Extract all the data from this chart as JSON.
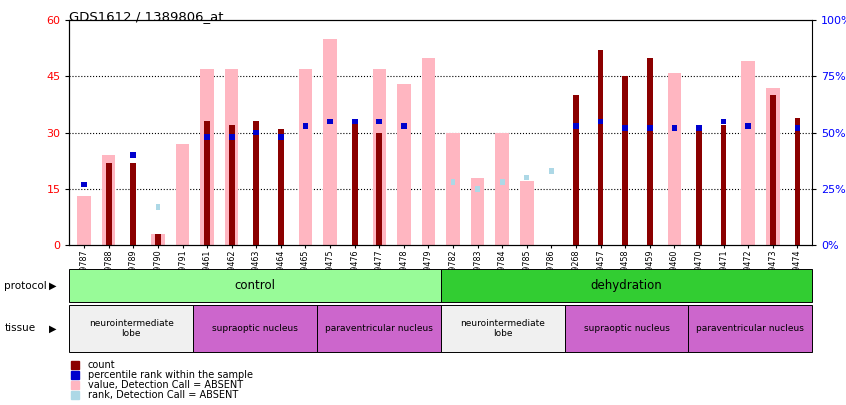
{
  "title": "GDS1612 / 1389806_at",
  "samples": [
    "GSM69787",
    "GSM69788",
    "GSM69789",
    "GSM69790",
    "GSM69791",
    "GSM69461",
    "GSM69462",
    "GSM69463",
    "GSM69464",
    "GSM69465",
    "GSM69475",
    "GSM69476",
    "GSM69477",
    "GSM69478",
    "GSM69479",
    "GSM69782",
    "GSM69783",
    "GSM69784",
    "GSM69785",
    "GSM69786",
    "GSM69268",
    "GSM69457",
    "GSM69458",
    "GSM69459",
    "GSM69460",
    "GSM69470",
    "GSM69471",
    "GSM69472",
    "GSM69473",
    "GSM69474"
  ],
  "count_values": [
    null,
    22,
    22,
    3,
    null,
    33,
    32,
    33,
    31,
    null,
    null,
    33,
    30,
    null,
    null,
    null,
    null,
    null,
    null,
    null,
    40,
    52,
    45,
    50,
    null,
    32,
    32,
    null,
    40,
    34
  ],
  "rank_values_pct": [
    27,
    null,
    40,
    null,
    null,
    48,
    48,
    50,
    48,
    53,
    55,
    55,
    55,
    53,
    null,
    null,
    null,
    null,
    null,
    null,
    53,
    55,
    52,
    52,
    52,
    52,
    55,
    53,
    null,
    52
  ],
  "value_absent": [
    13,
    24,
    null,
    3,
    27,
    47,
    47,
    null,
    null,
    47,
    55,
    null,
    47,
    43,
    50,
    30,
    18,
    30,
    17,
    null,
    null,
    null,
    null,
    null,
    46,
    null,
    null,
    49,
    42,
    null
  ],
  "rank_absent_pct": [
    27,
    null,
    null,
    17,
    null,
    null,
    null,
    null,
    null,
    null,
    null,
    null,
    null,
    null,
    null,
    28,
    25,
    28,
    30,
    33,
    null,
    null,
    null,
    null,
    null,
    null,
    null,
    null,
    null,
    null
  ],
  "ylim_left": [
    0,
    60
  ],
  "ylim_right": [
    0,
    100
  ],
  "yticks_left": [
    0,
    15,
    30,
    45,
    60
  ],
  "yticks_right": [
    0,
    25,
    50,
    75,
    100
  ],
  "bar_color_count": "#8B0000",
  "bar_color_rank": "#0000CD",
  "bar_color_value_absent": "#FFB6C1",
  "bar_color_rank_absent": "#ADD8E6",
  "hlines": [
    15,
    30,
    45
  ],
  "protocol_labels": [
    "control",
    "dehydration"
  ],
  "protocol_starts": [
    0,
    15
  ],
  "protocol_ends": [
    15,
    30
  ],
  "protocol_colors": [
    "#98FB98",
    "#32CD32"
  ],
  "tissue_labels": [
    "neurointermediate\nlobe",
    "supraoptic nucleus",
    "paraventricular nucleus",
    "neurointermediate\nlobe",
    "supraoptic nucleus",
    "paraventricular nucleus"
  ],
  "tissue_starts": [
    0,
    5,
    10,
    15,
    20,
    25
  ],
  "tissue_ends": [
    5,
    10,
    15,
    20,
    25,
    30
  ],
  "tissue_colors": [
    "#f0f0f0",
    "#CC66CC",
    "#CC66CC",
    "#f0f0f0",
    "#CC66CC",
    "#CC66CC"
  ],
  "legend_items": [
    {
      "color": "#8B0000",
      "label": "count"
    },
    {
      "color": "#0000CD",
      "label": "percentile rank within the sample"
    },
    {
      "color": "#FFB6C1",
      "label": "value, Detection Call = ABSENT"
    },
    {
      "color": "#ADD8E6",
      "label": "rank, Detection Call = ABSENT"
    }
  ]
}
